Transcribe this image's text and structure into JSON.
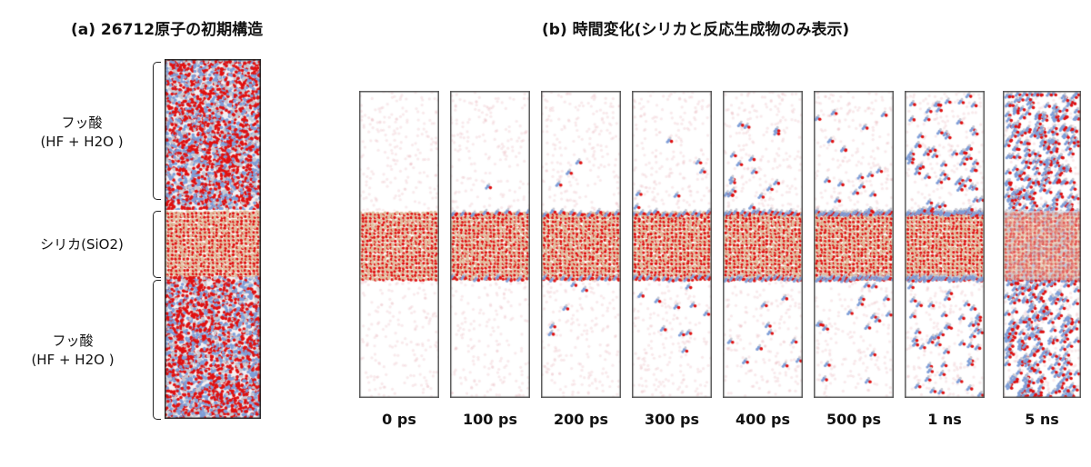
{
  "panel_a": {
    "title": "(a) 26712原子の初期構造",
    "regions": [
      {
        "name": "フッ酸",
        "detail": "(HF + H2O )"
      },
      {
        "name": "シリカ(SiO2)",
        "detail": ""
      },
      {
        "name": "フッ酸",
        "detail": "(HF + H2O )"
      }
    ]
  },
  "panel_b": {
    "title": "(b) 時間変化(シリカと反応生成物のみ表示)",
    "snapshots": [
      {
        "time": "0 ps",
        "escaped": 0
      },
      {
        "time": "100 ps",
        "escaped": 1
      },
      {
        "time": "200 ps",
        "escaped": 8
      },
      {
        "time": "300 ps",
        "escaped": 16
      },
      {
        "time": "400 ps",
        "escaped": 28
      },
      {
        "time": "500 ps",
        "escaped": 34
      },
      {
        "time": "1 ns",
        "escaped": 110
      },
      {
        "time": "5 ns",
        "escaped": 600
      }
    ]
  },
  "colors": {
    "oxygen": "#e01010",
    "silicon": "#e0c0a0",
    "fluorine": "#7f9fd8",
    "hydrogen": "#c8c8d0",
    "box": "#555555"
  }
}
